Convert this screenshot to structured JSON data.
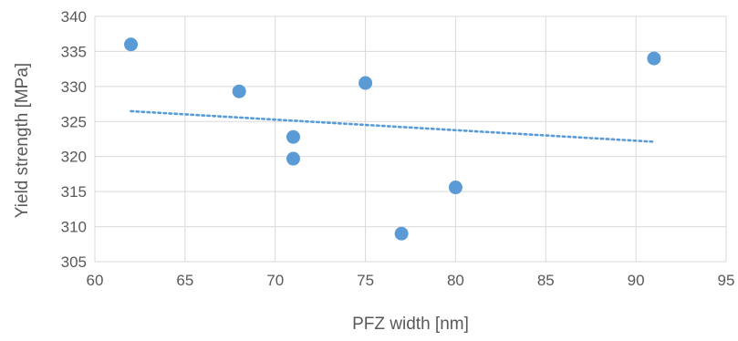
{
  "chart_data": {
    "type": "scatter",
    "title": "",
    "xlabel": "PFZ width [nm]",
    "ylabel": "Yield strength [MPa]",
    "xlim": [
      60,
      95
    ],
    "ylim": [
      305,
      340
    ],
    "x_ticks": [
      60,
      65,
      70,
      75,
      80,
      85,
      90,
      95
    ],
    "y_ticks": [
      305,
      310,
      315,
      320,
      325,
      330,
      335,
      340
    ],
    "grid": true,
    "legend": "none",
    "series": [
      {
        "x": [
          62,
          68,
          71,
          71,
          75,
          77,
          80,
          91
        ],
        "y": [
          336.0,
          329.3,
          322.8,
          319.7,
          330.5,
          309.0,
          315.6,
          334.0
        ],
        "color": "#5b9bd5",
        "marker": "circle"
      }
    ],
    "trendline": {
      "type": "linear",
      "style": "dotted",
      "color": "#5b9bd5",
      "x_range": [
        62,
        91
      ]
    }
  }
}
